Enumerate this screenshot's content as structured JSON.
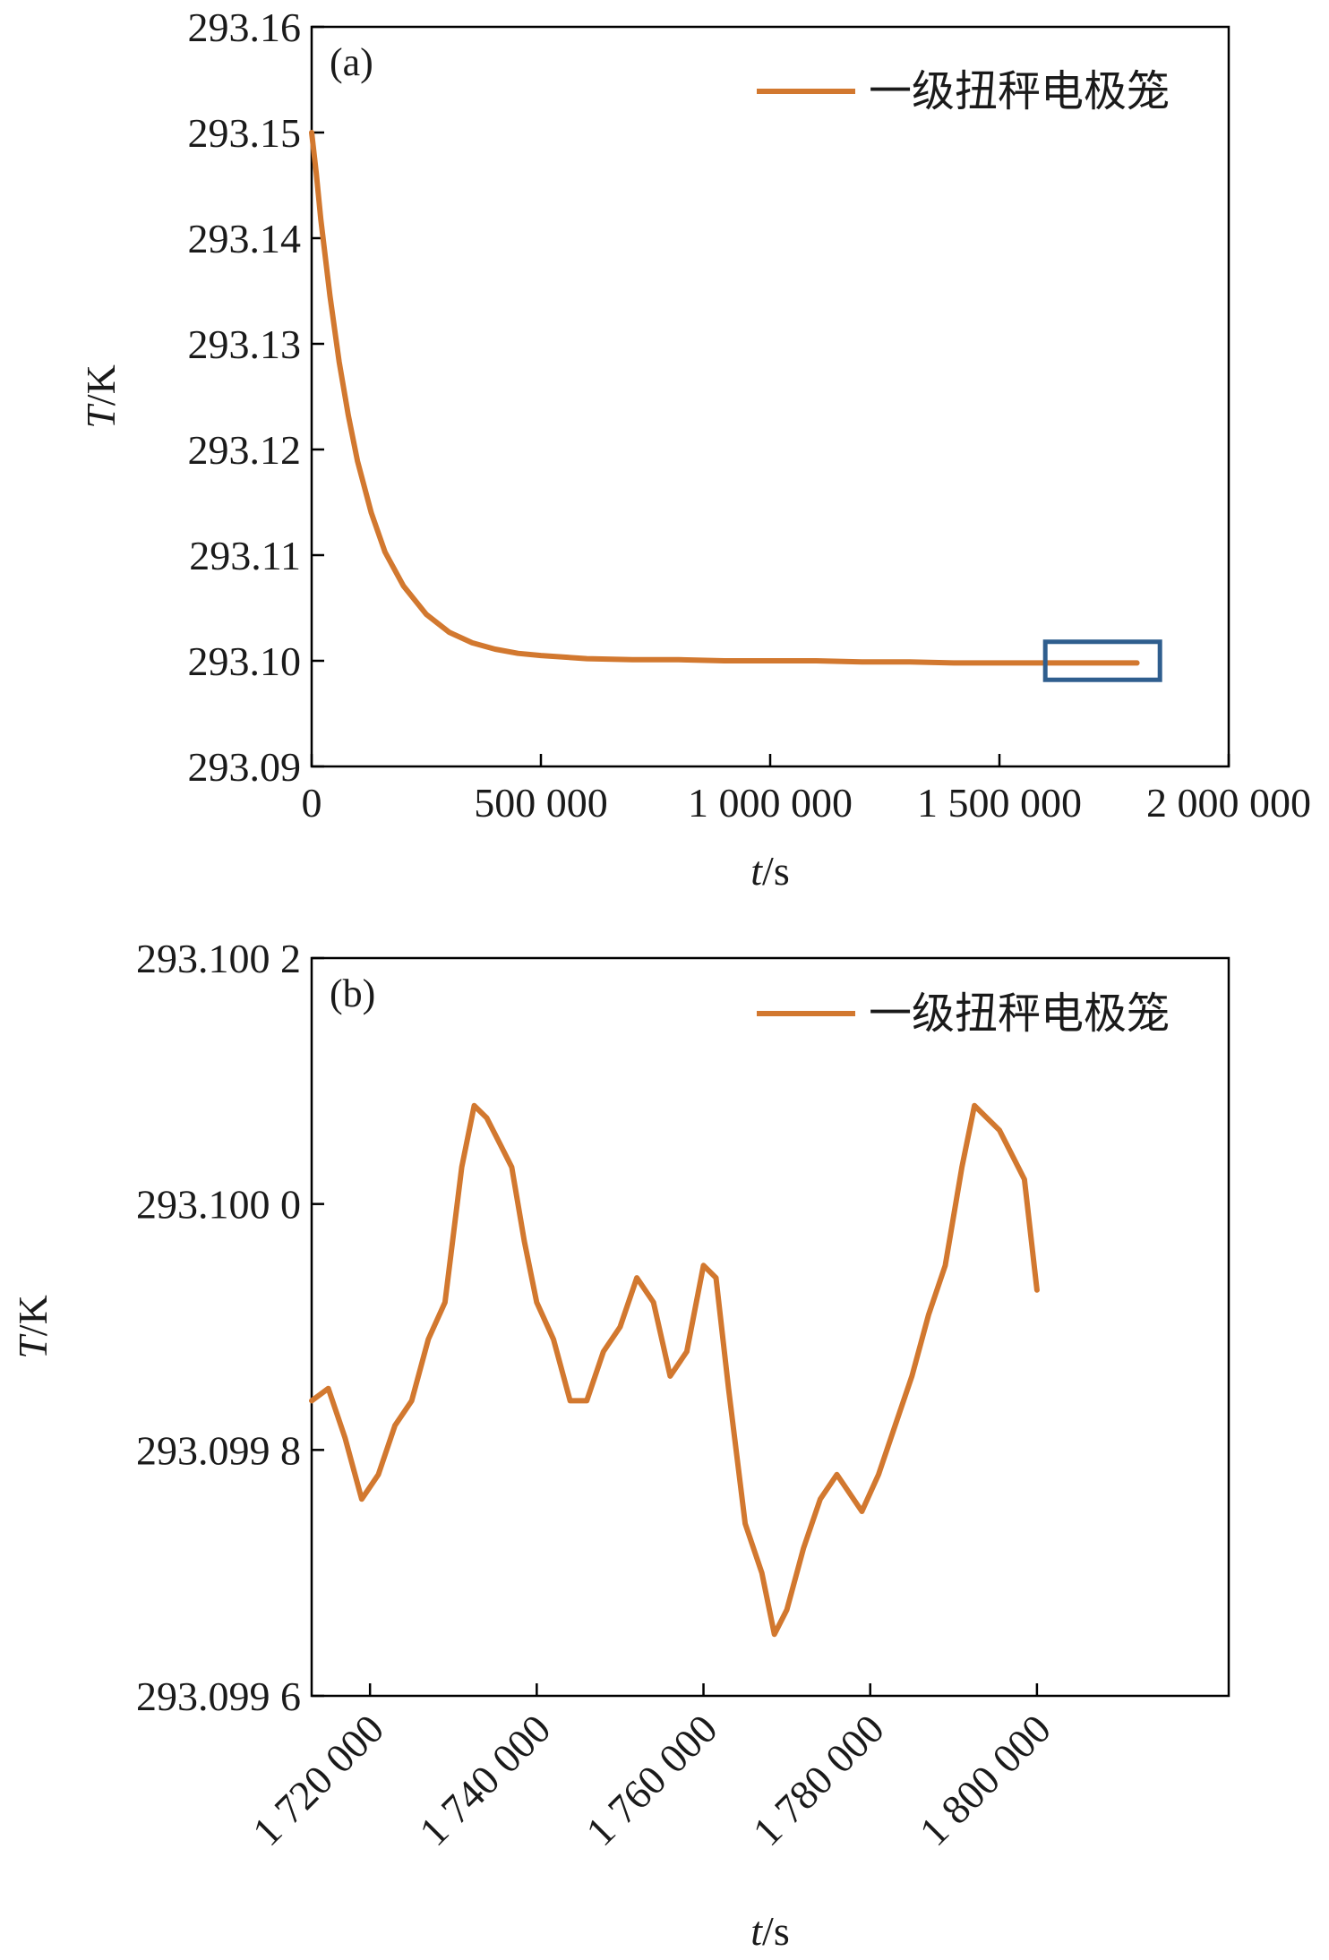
{
  "colors": {
    "series": "#D2782F",
    "highlight_box": "#2F5E8E",
    "axis": "#000000",
    "text": "#1a1a1a"
  },
  "chart_data": [
    {
      "type": "line",
      "panel_label": "(a)",
      "xlabel_italic": "t",
      "xlabel_unit": "/s",
      "ylabel_italic": "T",
      "ylabel_unit": "/K",
      "xlim": [
        0,
        2000000
      ],
      "ylim": [
        293.09,
        293.16
      ],
      "x_ticks": [
        0,
        500000,
        1000000,
        1500000,
        2000000
      ],
      "x_tick_labels": [
        "0",
        "500 000",
        "1 000 000",
        "1 500 000",
        "2 000 000"
      ],
      "y_ticks": [
        293.09,
        293.1,
        293.11,
        293.12,
        293.13,
        293.14,
        293.15,
        293.16
      ],
      "y_tick_labels": [
        "293.09",
        "293.10",
        "293.11",
        "293.12",
        "293.13",
        "293.14",
        "293.15",
        "293.16"
      ],
      "legend_position": "top-right",
      "highlight_box": {
        "x_range": [
          1600000,
          1850000
        ],
        "y_range": [
          293.0982,
          293.1018
        ]
      },
      "series": [
        {
          "name": "一级扭秤电极笼",
          "x": [
            0,
            10000,
            20000,
            40000,
            60000,
            80000,
            100000,
            130000,
            160000,
            200000,
            250000,
            300000,
            350000,
            400000,
            450000,
            500000,
            600000,
            700000,
            800000,
            900000,
            1000000,
            1100000,
            1200000,
            1300000,
            1400000,
            1500000,
            1600000,
            1700000,
            1800000
          ],
          "y": [
            293.15,
            293.1462,
            293.1418,
            293.1345,
            293.1283,
            293.1232,
            293.1189,
            293.114,
            293.1103,
            293.1071,
            293.1044,
            293.1027,
            293.1017,
            293.1011,
            293.1007,
            293.1005,
            293.1002,
            293.1001,
            293.1001,
            293.1,
            293.1,
            293.1,
            293.0999,
            293.0999,
            293.0998,
            293.0998,
            293.0998,
            293.0998,
            293.0998
          ]
        }
      ]
    },
    {
      "type": "line",
      "panel_label": "(b)",
      "xlabel_italic": "t",
      "xlabel_unit": "/s",
      "ylabel_italic": "T",
      "ylabel_unit": "/K",
      "xlim": [
        1713000,
        1823000
      ],
      "ylim": [
        293.0996,
        293.1002
      ],
      "x_ticks": [
        1720000,
        1740000,
        1760000,
        1780000,
        1800000
      ],
      "x_tick_labels": [
        "1 720 000",
        "1 740 000",
        "1 760 000",
        "1 780 000",
        "1 800 000"
      ],
      "y_ticks": [
        293.0996,
        293.0998,
        293.1,
        293.1002
      ],
      "y_tick_labels": [
        "293.099 6",
        "293.099 8",
        "293.100 0",
        "293.100 2"
      ],
      "legend_position": "top-right",
      "series": [
        {
          "name": "一级扭秤电极笼",
          "x": [
            1713000,
            1715000,
            1717000,
            1719000,
            1721000,
            1723000,
            1725000,
            1727000,
            1729000,
            1731000,
            1732500,
            1734000,
            1735500,
            1737000,
            1738500,
            1740000,
            1742000,
            1744000,
            1746000,
            1748000,
            1750000,
            1752000,
            1754000,
            1756000,
            1758000,
            1760000,
            1761500,
            1763000,
            1765000,
            1767000,
            1768500,
            1770000,
            1772000,
            1774000,
            1776000,
            1777000,
            1779000,
            1781000,
            1783000,
            1785000,
            1787000,
            1789000,
            1791000,
            1792500,
            1794000,
            1795500,
            1797000,
            1798500,
            1800000
          ],
          "y": [
            293.09984,
            293.09985,
            293.09981,
            293.09976,
            293.09978,
            293.09982,
            293.09984,
            293.09989,
            293.09992,
            293.10003,
            293.10008,
            293.10007,
            293.10005,
            293.10003,
            293.09997,
            293.09992,
            293.09989,
            293.09984,
            293.09984,
            293.09988,
            293.0999,
            293.09994,
            293.09992,
            293.09986,
            293.09988,
            293.09995,
            293.09994,
            293.09985,
            293.09974,
            293.0997,
            293.09965,
            293.09967,
            293.09972,
            293.09976,
            293.09978,
            293.09977,
            293.09975,
            293.09978,
            293.09982,
            293.09986,
            293.09991,
            293.09995,
            293.10003,
            293.10008,
            293.10007,
            293.10006,
            293.10004,
            293.10002,
            293.09993
          ]
        }
      ]
    }
  ]
}
